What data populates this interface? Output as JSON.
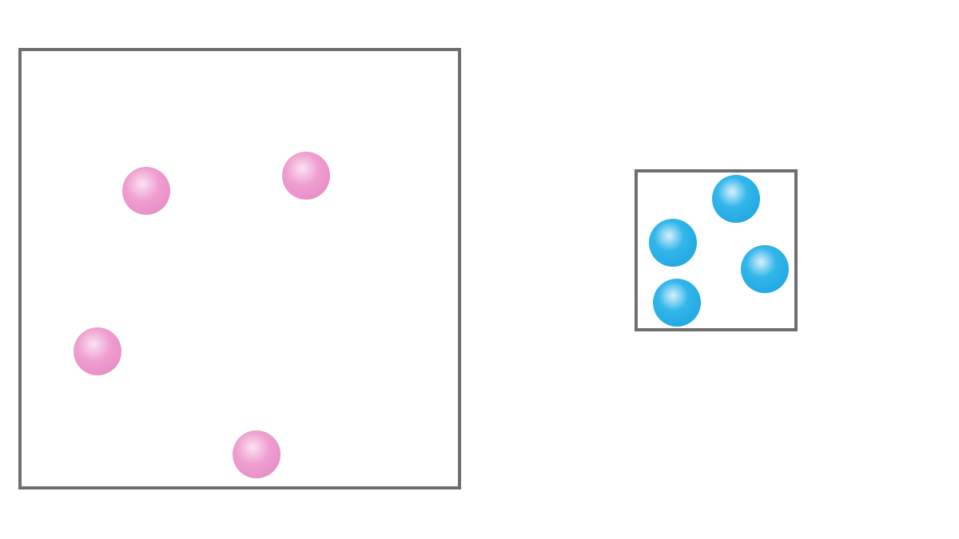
{
  "colors": {
    "background": "#ffffff",
    "container_border": "#6e6e6e",
    "pink_particle": "#ec9fd0",
    "pink_highlight": "#fbe3f1",
    "blue_particle": "#29b1e8",
    "blue_highlight": "#d7f1fc"
  },
  "containers": [
    {
      "id": "large",
      "particle_color": "pink",
      "particle_count": 4
    },
    {
      "id": "small",
      "particle_color": "blue",
      "particle_count": 4
    }
  ]
}
